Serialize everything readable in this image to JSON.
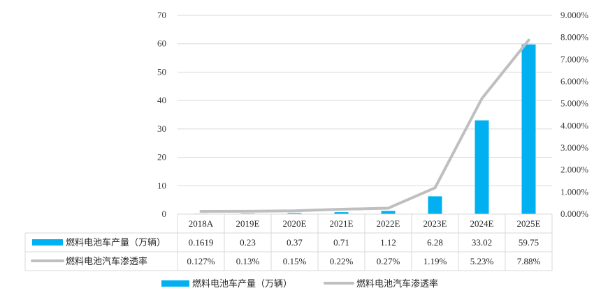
{
  "chart_data": {
    "type": "bar",
    "categories": [
      "2018A",
      "2019E",
      "2020E",
      "2021E",
      "2022E",
      "2023E",
      "2024E",
      "2025E"
    ],
    "series": [
      {
        "name": "燃料电池车产量（万辆）",
        "kind": "bar",
        "axis": "left",
        "color": "#00B0F0",
        "values": [
          0.1619,
          0.23,
          0.37,
          0.71,
          1.12,
          6.28,
          33.02,
          59.75
        ],
        "labels": [
          "0.1619",
          "0.23",
          "0.37",
          "0.71",
          "1.12",
          "6.28",
          "33.02",
          "59.75"
        ]
      },
      {
        "name": "燃料电池汽车渗透率",
        "kind": "line",
        "axis": "right",
        "color": "#BFBFBF",
        "values": [
          0.127,
          0.13,
          0.15,
          0.22,
          0.27,
          1.19,
          5.23,
          7.88
        ],
        "labels": [
          "0.127%",
          "0.13%",
          "0.15%",
          "0.22%",
          "0.27%",
          "1.19%",
          "5.23%",
          "7.88%"
        ]
      }
    ],
    "left_axis": {
      "min": 0,
      "max": 70,
      "ticks": [
        0,
        10,
        20,
        30,
        40,
        50,
        60,
        70
      ],
      "tick_labels": [
        "0",
        "10",
        "20",
        "30",
        "40",
        "50",
        "60",
        "70"
      ]
    },
    "right_axis": {
      "min": 0,
      "max": 9,
      "ticks": [
        0,
        1,
        2,
        3,
        4,
        5,
        6,
        7,
        8,
        9
      ],
      "tick_labels": [
        "0.000%",
        "1.000%",
        "2.000%",
        "3.000%",
        "4.000%",
        "5.000%",
        "6.000%",
        "7.000%",
        "8.000%",
        "9.000%"
      ]
    },
    "grid": true,
    "data_table": true,
    "legend_position": "bottom"
  }
}
